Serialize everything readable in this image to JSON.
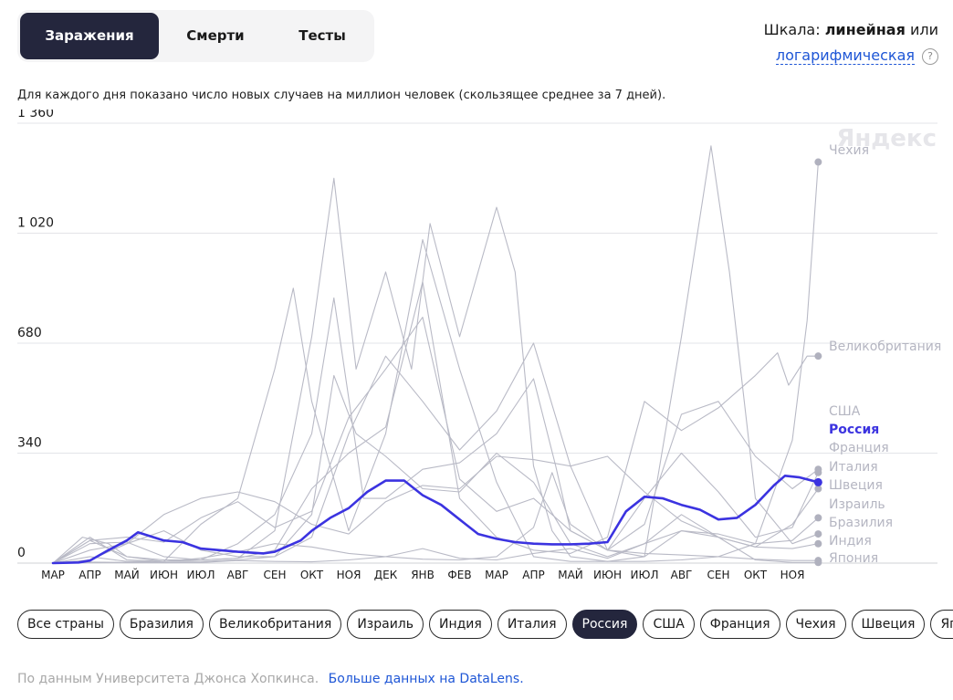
{
  "tabs": [
    {
      "label": "Заражения",
      "active": true
    },
    {
      "label": "Смерти",
      "active": false
    },
    {
      "label": "Тесты",
      "active": false
    }
  ],
  "scale": {
    "prefix": "Шкала:",
    "current": "линейная",
    "joiner": "или",
    "alternative": "логарифмическая",
    "help": "?"
  },
  "subtitle": "Для каждого дня показано число новых случаев на миллион человек (скользящее среднее за 7 дней).",
  "watermark": "Яндекс",
  "countries": [
    {
      "label": "Все страны",
      "active": false
    },
    {
      "label": "Бразилия",
      "active": false
    },
    {
      "label": "Великобритания",
      "active": false
    },
    {
      "label": "Израиль",
      "active": false
    },
    {
      "label": "Индия",
      "active": false
    },
    {
      "label": "Италия",
      "active": false
    },
    {
      "label": "Россия",
      "active": true
    },
    {
      "label": "США",
      "active": false
    },
    {
      "label": "Франция",
      "active": false
    },
    {
      "label": "Чехия",
      "active": false
    },
    {
      "label": "Швеция",
      "active": false
    },
    {
      "label": "Япония",
      "active": false
    }
  ],
  "footer": {
    "source": "По данным Университета Джонса Хопкинса.",
    "link": "Больше данных на DataLens."
  },
  "colors": {
    "highlight": "#3b33e0",
    "muted": "#b9bac6",
    "dark": "#24263d",
    "link": "#1e56d6"
  },
  "chart_data": {
    "type": "line",
    "y_ticks": [
      0,
      340,
      680,
      1020,
      1360
    ],
    "ylim": [
      0,
      1360
    ],
    "x_ticks": [
      "МАР",
      "АПР",
      "МАЙ",
      "ИЮН",
      "ИЮЛ",
      "АВГ",
      "СЕН",
      "ОКТ",
      "НОЯ",
      "ДЕК",
      "ЯНВ",
      "ФЕВ",
      "МАР",
      "АПР",
      "МАЙ",
      "ИЮН",
      "ИЮЛ",
      "АВГ",
      "СЕН",
      "ОКТ",
      "НОЯ"
    ],
    "x_unit": "months since March 2020",
    "highlighted_series": "Россия",
    "series": [
      {
        "name": "Чехия",
        "end_value": 1240,
        "points": [
          [
            0,
            0
          ],
          [
            1,
            20
          ],
          [
            2,
            5
          ],
          [
            3,
            5
          ],
          [
            4,
            10
          ],
          [
            5,
            15
          ],
          [
            6,
            100
          ],
          [
            7,
            700
          ],
          [
            7.6,
            1190
          ],
          [
            8.2,
            600
          ],
          [
            9,
            900
          ],
          [
            9.7,
            600
          ],
          [
            10.2,
            1050
          ],
          [
            11,
            700
          ],
          [
            12,
            1100
          ],
          [
            12.5,
            900
          ],
          [
            13,
            300
          ],
          [
            13.5,
            100
          ],
          [
            14,
            20
          ],
          [
            15,
            5
          ],
          [
            16,
            5
          ],
          [
            17,
            10
          ],
          [
            18,
            20
          ],
          [
            19,
            60
          ],
          [
            20,
            380
          ],
          [
            20.4,
            750
          ],
          [
            20.7,
            1240
          ]
        ]
      },
      {
        "name": "Великобритания",
        "end_value": 640,
        "points": [
          [
            0,
            0
          ],
          [
            1,
            60
          ],
          [
            2,
            65
          ],
          [
            3,
            20
          ],
          [
            4,
            10
          ],
          [
            5,
            15
          ],
          [
            6,
            40
          ],
          [
            7,
            230
          ],
          [
            8,
            340
          ],
          [
            9,
            420
          ],
          [
            10,
            870
          ],
          [
            11,
            200
          ],
          [
            12,
            80
          ],
          [
            13,
            40
          ],
          [
            14,
            30
          ],
          [
            15,
            80
          ],
          [
            16,
            500
          ],
          [
            17,
            410
          ],
          [
            18,
            480
          ],
          [
            19,
            580
          ],
          [
            19.6,
            650
          ],
          [
            19.9,
            550
          ],
          [
            20.4,
            640
          ],
          [
            20.7,
            640
          ]
        ]
      },
      {
        "name": "США",
        "end_value": 290,
        "points": [
          [
            0,
            0
          ],
          [
            1,
            70
          ],
          [
            2,
            80
          ],
          [
            3,
            65
          ],
          [
            4,
            140
          ],
          [
            5,
            190
          ],
          [
            6,
            110
          ],
          [
            7,
            160
          ],
          [
            8,
            450
          ],
          [
            9,
            600
          ],
          [
            10,
            760
          ],
          [
            11,
            260
          ],
          [
            12,
            160
          ],
          [
            13,
            200
          ],
          [
            14,
            100
          ],
          [
            15,
            40
          ],
          [
            16,
            120
          ],
          [
            17,
            460
          ],
          [
            18,
            500
          ],
          [
            19,
            330
          ],
          [
            20,
            230
          ],
          [
            20.7,
            290
          ]
        ]
      },
      {
        "name": "Франция",
        "end_value": 280,
        "points": [
          [
            0,
            0
          ],
          [
            1,
            70
          ],
          [
            2,
            20
          ],
          [
            3,
            10
          ],
          [
            4,
            10
          ],
          [
            5,
            60
          ],
          [
            6,
            150
          ],
          [
            7,
            400
          ],
          [
            7.6,
            820
          ],
          [
            8.4,
            200
          ],
          [
            9,
            200
          ],
          [
            10,
            290
          ],
          [
            11,
            310
          ],
          [
            12,
            400
          ],
          [
            13,
            570
          ],
          [
            13.6,
            300
          ],
          [
            14,
            100
          ],
          [
            15,
            40
          ],
          [
            16,
            200
          ],
          [
            17,
            340
          ],
          [
            18,
            220
          ],
          [
            19,
            80
          ],
          [
            20,
            110
          ],
          [
            20.7,
            280
          ]
        ]
      },
      {
        "name": "Италия",
        "end_value": 230,
        "points": [
          [
            0,
            0
          ],
          [
            0.8,
            80
          ],
          [
            1.5,
            60
          ],
          [
            2,
            20
          ],
          [
            3,
            5
          ],
          [
            4,
            5
          ],
          [
            5,
            10
          ],
          [
            6,
            20
          ],
          [
            7,
            150
          ],
          [
            7.6,
            580
          ],
          [
            8.2,
            400
          ],
          [
            9,
            330
          ],
          [
            10,
            230
          ],
          [
            11,
            220
          ],
          [
            12,
            340
          ],
          [
            13,
            250
          ],
          [
            14,
            60
          ],
          [
            15,
            20
          ],
          [
            16,
            60
          ],
          [
            17,
            100
          ],
          [
            18,
            80
          ],
          [
            19,
            50
          ],
          [
            20,
            120
          ],
          [
            20.7,
            230
          ]
        ]
      },
      {
        "name": "Швеция",
        "end_value": 140,
        "points": [
          [
            0,
            0
          ],
          [
            1,
            40
          ],
          [
            2,
            60
          ],
          [
            3,
            100
          ],
          [
            4,
            40
          ],
          [
            5,
            20
          ],
          [
            6,
            20
          ],
          [
            7,
            80
          ],
          [
            8,
            400
          ],
          [
            9,
            640
          ],
          [
            10,
            500
          ],
          [
            11,
            350
          ],
          [
            12,
            470
          ],
          [
            13,
            680
          ],
          [
            14,
            300
          ],
          [
            15,
            40
          ],
          [
            16,
            20
          ],
          [
            17,
            100
          ],
          [
            18,
            90
          ],
          [
            19,
            60
          ],
          [
            20,
            70
          ],
          [
            20.7,
            140
          ]
        ]
      },
      {
        "name": "Израиль",
        "end_value": 90,
        "points": [
          [
            0,
            0
          ],
          [
            1,
            80
          ],
          [
            2,
            10
          ],
          [
            3,
            5
          ],
          [
            4,
            120
          ],
          [
            5,
            200
          ],
          [
            6,
            600
          ],
          [
            6.5,
            850
          ],
          [
            7,
            500
          ],
          [
            8,
            100
          ],
          [
            9,
            400
          ],
          [
            10,
            1000
          ],
          [
            11,
            600
          ],
          [
            12,
            250
          ],
          [
            13,
            20
          ],
          [
            14,
            5
          ],
          [
            15,
            5
          ],
          [
            16,
            20
          ],
          [
            17,
            700
          ],
          [
            17.8,
            1290
          ],
          [
            18.3,
            900
          ],
          [
            19,
            200
          ],
          [
            20,
            60
          ],
          [
            20.7,
            90
          ]
        ]
      },
      {
        "name": "Бразилия",
        "end_value": 60,
        "points": [
          [
            0,
            0
          ],
          [
            1,
            10
          ],
          [
            2,
            60
          ],
          [
            3,
            150
          ],
          [
            4,
            200
          ],
          [
            5,
            220
          ],
          [
            6,
            190
          ],
          [
            7,
            120
          ],
          [
            8,
            90
          ],
          [
            9,
            190
          ],
          [
            10,
            240
          ],
          [
            11,
            230
          ],
          [
            12,
            330
          ],
          [
            13,
            320
          ],
          [
            14,
            300
          ],
          [
            15,
            330
          ],
          [
            16,
            220
          ],
          [
            17,
            130
          ],
          [
            18,
            80
          ],
          [
            19,
            50
          ],
          [
            20,
            45
          ],
          [
            20.7,
            60
          ]
        ]
      },
      {
        "name": "Индия",
        "end_value": 8,
        "points": [
          [
            0,
            0
          ],
          [
            1,
            1
          ],
          [
            2,
            2
          ],
          [
            3,
            5
          ],
          [
            4,
            15
          ],
          [
            5,
            35
          ],
          [
            6,
            60
          ],
          [
            7,
            50
          ],
          [
            8,
            30
          ],
          [
            9,
            20
          ],
          [
            10,
            12
          ],
          [
            11,
            10
          ],
          [
            12,
            20
          ],
          [
            13,
            110
          ],
          [
            13.5,
            280
          ],
          [
            14,
            120
          ],
          [
            15,
            40
          ],
          [
            16,
            30
          ],
          [
            17,
            25
          ],
          [
            18,
            20
          ],
          [
            19,
            12
          ],
          [
            20,
            8
          ],
          [
            20.7,
            8
          ]
        ]
      },
      {
        "name": "Япония",
        "end_value": 2,
        "points": [
          [
            0,
            0
          ],
          [
            1,
            3
          ],
          [
            2,
            2
          ],
          [
            3,
            1
          ],
          [
            4,
            2
          ],
          [
            5,
            8
          ],
          [
            6,
            5
          ],
          [
            7,
            4
          ],
          [
            8,
            10
          ],
          [
            9,
            20
          ],
          [
            10,
            45
          ],
          [
            11,
            15
          ],
          [
            12,
            10
          ],
          [
            13,
            30
          ],
          [
            14,
            45
          ],
          [
            15,
            15
          ],
          [
            16,
            60
          ],
          [
            17,
            150
          ],
          [
            18,
            80
          ],
          [
            19,
            10
          ],
          [
            20,
            2
          ],
          [
            20.7,
            2
          ]
        ]
      },
      {
        "name": "Россия",
        "end_value": 250,
        "points": [
          [
            0,
            0
          ],
          [
            0.7,
            2
          ],
          [
            1,
            8
          ],
          [
            1.5,
            40
          ],
          [
            2,
            70
          ],
          [
            2.3,
            95
          ],
          [
            3,
            70
          ],
          [
            3.5,
            65
          ],
          [
            4,
            45
          ],
          [
            4.5,
            40
          ],
          [
            5,
            35
          ],
          [
            5.7,
            30
          ],
          [
            6,
            35
          ],
          [
            6.7,
            70
          ],
          [
            7,
            100
          ],
          [
            7.5,
            140
          ],
          [
            8,
            170
          ],
          [
            8.5,
            220
          ],
          [
            9,
            255
          ],
          [
            9.5,
            255
          ],
          [
            10,
            210
          ],
          [
            10.5,
            180
          ],
          [
            11,
            135
          ],
          [
            11.5,
            90
          ],
          [
            12,
            75
          ],
          [
            12.5,
            65
          ],
          [
            13,
            60
          ],
          [
            13.5,
            58
          ],
          [
            14,
            58
          ],
          [
            14.5,
            60
          ],
          [
            15,
            65
          ],
          [
            15.5,
            160
          ],
          [
            16,
            205
          ],
          [
            16.5,
            200
          ],
          [
            17,
            180
          ],
          [
            17.5,
            165
          ],
          [
            18,
            135
          ],
          [
            18.5,
            140
          ],
          [
            19,
            180
          ],
          [
            19.5,
            240
          ],
          [
            19.8,
            270
          ],
          [
            20.2,
            265
          ],
          [
            20.7,
            250
          ]
        ]
      }
    ]
  }
}
